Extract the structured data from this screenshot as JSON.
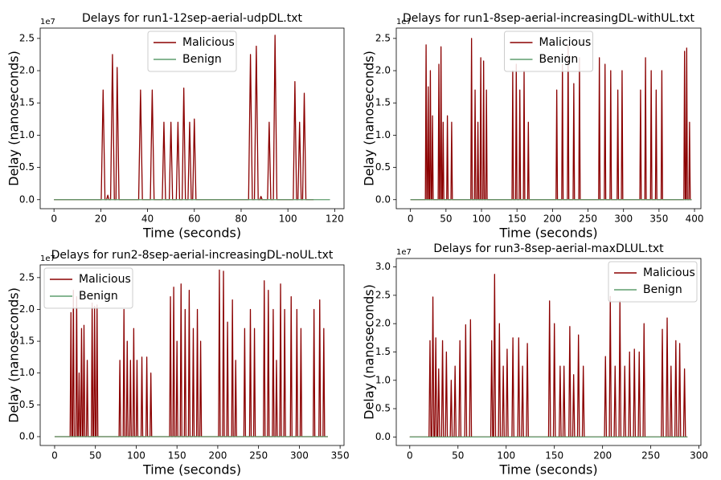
{
  "chart_data": [
    {
      "type": "line",
      "title": "Delays for run1-12sep-aerial-udpDL.txt",
      "xlabel": "Time (seconds)",
      "ylabel": "Delay (nanoseconds)",
      "y_offset_label": "1e7",
      "xlim": [
        -5.9,
        124
      ],
      "ylim": [
        -0.14,
        2.66
      ],
      "xticks": [
        0,
        20,
        40,
        60,
        80,
        100,
        120
      ],
      "yticks": [
        {
          "value": 0,
          "label": "0.0"
        },
        0.5,
        {
          "value": 1,
          "label": "1.0"
        },
        1.5,
        {
          "value": 2,
          "label": "2.0"
        },
        2.5
      ],
      "legend": "upper center",
      "series": [
        {
          "name": "Malicious",
          "color": "#8b0000",
          "x": [
            0,
            20.2,
            21,
            21.8,
            22.5,
            23,
            23.5,
            24.2,
            25,
            25.8,
            26.5,
            27,
            27.8,
            36.2,
            37,
            37.8,
            41.2,
            42,
            42.8,
            46.3,
            47,
            47.7,
            49.3,
            50,
            50.7,
            52.3,
            53,
            53.7,
            54.8,
            55.5,
            56.2,
            57.3,
            58,
            58.7,
            59.3,
            60,
            60.7,
            83.2,
            84,
            84.8,
            85.7,
            86.5,
            87.3,
            88,
            88.5,
            89,
            91.3,
            92,
            92.7,
            93.8,
            94.5,
            95.3,
            102.3,
            103,
            103.7,
            104.3,
            105,
            105.7,
            106.3,
            107,
            107.7,
            111
          ],
          "values": [
            0,
            0,
            1.7,
            0,
            0,
            0.07,
            0,
            0,
            2.25,
            0,
            0,
            2.05,
            0,
            0,
            1.7,
            0,
            0,
            1.7,
            0,
            0,
            1.2,
            0,
            0,
            1.2,
            0,
            0,
            1.2,
            0,
            0,
            1.73,
            0,
            0,
            1.2,
            0,
            0,
            1.25,
            0,
            0,
            2.25,
            0,
            0,
            2.38,
            0,
            0,
            0.05,
            0,
            0,
            1.2,
            0,
            0,
            2.55,
            0,
            0,
            1.83,
            0,
            0,
            1.2,
            0,
            0,
            1.65,
            0,
            0
          ]
        },
        {
          "name": "Benign",
          "color": "#5f9e6e",
          "x": [
            0,
            118
          ],
          "values": [
            0,
            0
          ]
        }
      ]
    },
    {
      "type": "line",
      "title": "Delays for run1-8sep-aerial-increasingDL-withUL.txt",
      "xlabel": "Time (seconds)",
      "ylabel": "Delay (nanoseconds)",
      "y_offset_label": "1e7",
      "xlim": [
        -20,
        409
      ],
      "ylim": [
        -0.14,
        2.66
      ],
      "xticks": [
        0,
        50,
        100,
        150,
        200,
        250,
        300,
        350,
        400
      ],
      "yticks": [
        {
          "value": 0,
          "label": "0.0"
        },
        0.5,
        {
          "value": 1,
          "label": "1.0"
        },
        1.5,
        {
          "value": 2,
          "label": "2.0"
        },
        2.5
      ],
      "legend": "upper center",
      "series": [
        {
          "name": "Malicious",
          "color": "#8b0000",
          "x": [
            0,
            21,
            22,
            23,
            24,
            25,
            26,
            27,
            28,
            29,
            30,
            31,
            32,
            39,
            40,
            41,
            42,
            43,
            44,
            45,
            46,
            47,
            51,
            52,
            53,
            57,
            58,
            59,
            85,
            86,
            87,
            90,
            91,
            92,
            94,
            95,
            96,
            98,
            99,
            100,
            102,
            103,
            104,
            106,
            107,
            108,
            143,
            144,
            145,
            148,
            149,
            150,
            153,
            154,
            155,
            159,
            160,
            161,
            165,
            166,
            167,
            205,
            206,
            207,
            213,
            214,
            215,
            221,
            222,
            223,
            229,
            230,
            231,
            237,
            238,
            239,
            265,
            266,
            267,
            273,
            274,
            275,
            281,
            282,
            283,
            291,
            292,
            293,
            297,
            298,
            299,
            323,
            324,
            325,
            330,
            331,
            332,
            338,
            339,
            340,
            345,
            346,
            347,
            353,
            354,
            355,
            385,
            386,
            387,
            388,
            389,
            390,
            392,
            393,
            394,
            396
          ],
          "values": [
            0,
            0,
            2.4,
            0,
            0,
            1.75,
            0,
            0,
            2.0,
            0,
            0,
            1.3,
            0,
            0,
            2.1,
            0,
            0,
            2.37,
            0,
            0,
            1.2,
            0,
            0,
            1.3,
            0,
            0,
            1.2,
            0,
            0,
            2.5,
            0,
            0,
            1.7,
            0,
            0,
            1.2,
            0,
            0,
            2.2,
            0,
            0,
            2.15,
            0,
            0,
            1.7,
            0,
            0,
            2.0,
            0,
            0,
            2.1,
            0,
            0,
            1.7,
            0,
            0,
            2.0,
            0,
            0,
            1.2,
            0,
            0,
            1.7,
            0,
            0,
            2.1,
            0,
            0,
            2.4,
            0,
            0,
            1.8,
            0,
            0,
            2.2,
            0,
            0,
            2.2,
            0,
            0,
            2.1,
            0,
            0,
            2.0,
            0,
            0,
            1.7,
            0,
            0,
            2.0,
            0,
            0,
            1.7,
            0,
            0,
            2.2,
            0,
            0,
            2.0,
            0,
            0,
            1.7,
            0,
            0,
            2.0,
            0,
            0,
            2.3,
            0,
            0,
            2.35,
            0,
            0,
            1.2,
            0,
            0
          ]
        },
        {
          "name": "Benign",
          "color": "#5f9e6e",
          "x": [
            0,
            396
          ],
          "values": [
            0,
            0
          ]
        }
      ]
    },
    {
      "type": "line",
      "title": "Delays for run2-8sep-aerial-increasingDL-noUL.txt",
      "xlabel": "Time (seconds)",
      "ylabel": "Delay (nanoseconds)",
      "y_offset_label": "1e7",
      "xlim": [
        -17.7,
        354.8
      ],
      "ylim": [
        -0.139,
        2.7
      ],
      "xticks": [
        0,
        50,
        100,
        150,
        200,
        250,
        300,
        350
      ],
      "yticks": [
        {
          "value": 0,
          "label": "0.0"
        },
        0.5,
        {
          "value": 1,
          "label": "1.0"
        },
        1.5,
        {
          "value": 2,
          "label": "2.0"
        },
        2.5
      ],
      "legend": "upper left",
      "series": [
        {
          "name": "Malicious",
          "color": "#8b0000",
          "x": [
            0,
            19,
            20,
            21,
            22,
            23,
            24,
            26,
            27,
            28,
            29,
            30,
            31,
            32,
            33,
            34,
            35,
            36,
            37,
            39,
            40,
            41,
            45,
            46,
            47,
            48,
            49,
            50,
            51,
            52,
            53,
            79,
            80,
            81,
            84,
            85,
            86,
            88,
            89,
            90,
            92,
            93,
            94,
            96,
            97,
            98,
            100,
            101,
            102,
            106,
            107,
            108,
            112,
            113,
            114,
            117,
            118,
            119,
            141,
            142,
            143,
            145,
            146,
            147,
            149,
            150,
            151,
            154,
            155,
            156,
            159,
            160,
            161,
            164,
            165,
            166,
            169,
            170,
            171,
            174,
            175,
            176,
            178,
            179,
            180,
            201,
            202,
            203,
            206,
            207,
            208,
            211,
            212,
            213,
            217,
            218,
            219,
            221,
            222,
            223,
            232,
            233,
            234,
            239,
            240,
            241,
            244,
            245,
            246,
            256,
            257,
            258,
            261,
            262,
            263,
            267,
            268,
            269,
            271,
            272,
            273,
            276,
            277,
            278,
            281,
            282,
            283,
            289,
            290,
            291,
            296,
            297,
            298,
            301,
            302,
            303,
            317,
            318,
            319,
            324,
            325,
            326,
            329,
            330,
            331,
            335
          ],
          "values": [
            0,
            0,
            1.95,
            0,
            0,
            2.3,
            0,
            0,
            2.2,
            0,
            0,
            1.0,
            0,
            0,
            1.7,
            0,
            0,
            1.75,
            0,
            0,
            1.2,
            0,
            0,
            2.1,
            0,
            0,
            2.05,
            0,
            0,
            2.07,
            0,
            0,
            1.2,
            0,
            0,
            2.0,
            0,
            0,
            1.5,
            0,
            0,
            1.2,
            0,
            0,
            1.7,
            0,
            0,
            1.2,
            0,
            0,
            1.25,
            0,
            0,
            1.25,
            0,
            0,
            1.0,
            0,
            0,
            2.2,
            0,
            0,
            2.35,
            0,
            0,
            1.5,
            0,
            0,
            2.4,
            0,
            0,
            2.0,
            0,
            0,
            2.3,
            0,
            0,
            1.7,
            0,
            0,
            2.0,
            0,
            0,
            1.5,
            0,
            0,
            2.62,
            0,
            0,
            2.6,
            0,
            0,
            1.8,
            0,
            0,
            2.15,
            0,
            0,
            1.2,
            0,
            0,
            1.7,
            0,
            0,
            2.0,
            0,
            0,
            1.7,
            0,
            0,
            2.45,
            0,
            0,
            2.3,
            0,
            0,
            2.0,
            0,
            0,
            1.2,
            0,
            0,
            2.4,
            0,
            0,
            2.0,
            0,
            0,
            2.2,
            0,
            0,
            2.0,
            0,
            0,
            1.7,
            0,
            0,
            2.0,
            0,
            0,
            2.15,
            0,
            0,
            1.7,
            0,
            0
          ]
        },
        {
          "name": "Benign",
          "color": "#5f9e6e",
          "x": [
            0,
            335
          ],
          "values": [
            0,
            0
          ]
        }
      ]
    },
    {
      "type": "line",
      "title": "Delays for run3-8sep-aerial-maxDLUL.txt",
      "xlabel": "Time (seconds)",
      "ylabel": "Delay (nanoseconds)",
      "y_offset_label": "1e7",
      "xlim": [
        -14,
        302
      ],
      "ylim": [
        -0.15,
        3.15
      ],
      "xticks": [
        0,
        50,
        100,
        150,
        200,
        250,
        300
      ],
      "yticks": [
        {
          "value": 0,
          "label": "0.0"
        },
        0.5,
        {
          "value": 1,
          "label": "1.0"
        },
        1.5,
        {
          "value": 2,
          "label": "2.0"
        },
        2.5,
        {
          "value": 3,
          "label": "3.0"
        }
      ],
      "legend": "upper right",
      "series": [
        {
          "name": "Malicious",
          "color": "#8b0000",
          "x": [
            0,
            20,
            21,
            22,
            23,
            24,
            25,
            26,
            27,
            28,
            29,
            30,
            31,
            33,
            34,
            35,
            37,
            38,
            39,
            42,
            43,
            44,
            46,
            47,
            48,
            51,
            52,
            53,
            57,
            58,
            59,
            62,
            63,
            64,
            84,
            85,
            86,
            87,
            88,
            89,
            92,
            93,
            94,
            96,
            97,
            98,
            100,
            101,
            102,
            106,
            107,
            108,
            112,
            113,
            114,
            116,
            117,
            118,
            121,
            122,
            123,
            144,
            145,
            146,
            149,
            150,
            151,
            155,
            156,
            157,
            159,
            160,
            161,
            165,
            166,
            167,
            169,
            170,
            171,
            174,
            175,
            176,
            179,
            180,
            181,
            202,
            203,
            204,
            207,
            208,
            209,
            212,
            213,
            214,
            217,
            218,
            219,
            222,
            223,
            224,
            227,
            228,
            229,
            232,
            233,
            234,
            237,
            238,
            239,
            242,
            243,
            244,
            261,
            262,
            263,
            266,
            267,
            268,
            270,
            271,
            272,
            275,
            276,
            277,
            279,
            280,
            281,
            284,
            285,
            286,
            288
          ],
          "values": [
            0,
            0,
            1.7,
            0,
            0,
            2.47,
            0,
            0,
            1.75,
            0,
            0,
            1.2,
            0,
            0,
            1.7,
            0,
            0,
            1.5,
            0,
            0,
            1.0,
            0,
            0,
            1.25,
            0,
            0,
            1.7,
            0,
            0,
            1.98,
            0,
            0,
            2.07,
            0,
            0,
            1.7,
            0,
            0,
            2.87,
            0,
            0,
            2.0,
            0,
            0,
            1.25,
            0,
            0,
            1.55,
            0,
            0,
            1.75,
            0,
            0,
            1.75,
            0,
            0,
            1.25,
            0,
            0,
            1.65,
            0,
            0,
            2.4,
            0,
            0,
            2.0,
            0,
            0,
            1.25,
            0,
            0,
            1.25,
            0,
            0,
            1.95,
            0,
            0,
            1.1,
            0,
            0,
            1.8,
            0,
            0,
            1.25,
            0,
            0,
            1.42,
            0,
            0,
            2.48,
            0,
            0,
            1.25,
            0,
            0,
            2.4,
            0,
            0,
            1.25,
            0,
            0,
            1.5,
            0,
            0,
            1.55,
            0,
            0,
            1.5,
            0,
            0,
            2.0,
            0,
            0,
            1.9,
            0,
            0,
            2.1,
            0,
            0,
            1.25,
            0,
            0,
            1.7,
            0,
            0,
            1.65,
            0,
            0,
            1.2,
            0,
            0
          ]
        },
        {
          "name": "Benign",
          "color": "#5f9e6e",
          "x": [
            0,
            288
          ],
          "values": [
            0,
            0
          ]
        }
      ]
    }
  ]
}
